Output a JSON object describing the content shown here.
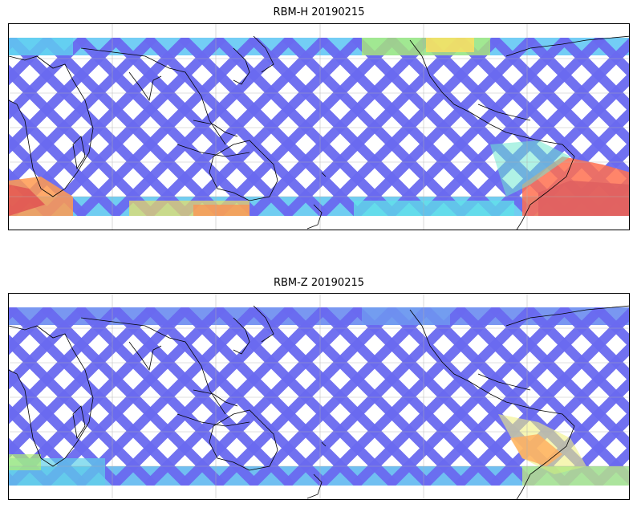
{
  "panels": [
    {
      "title": "RBM-H 20190215",
      "colors": {
        "track_base": "#6a6af0",
        "hot_south_america": "#e06060",
        "warm_band": "#ffc060",
        "cyan_band": "#60d8f0"
      }
    },
    {
      "title": "RBM-Z 20190215",
      "colors": {
        "track_base": "#6a6af0",
        "warm_band": "#ffb060",
        "cyan_band": "#70d0f0"
      }
    }
  ],
  "map": {
    "projection": "equirectangular",
    "gridlines": true,
    "coastlines": true
  }
}
